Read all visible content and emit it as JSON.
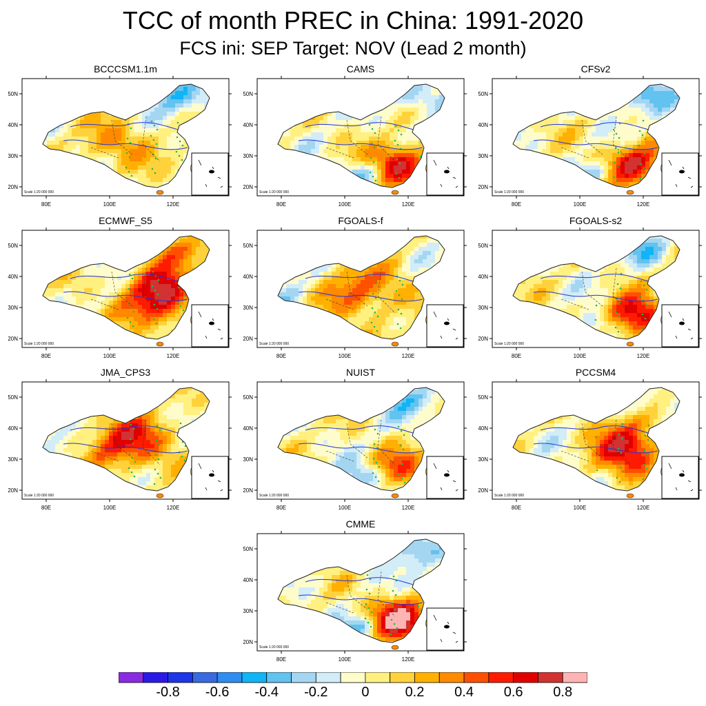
{
  "title": "TCC of month PREC in China: 1991-2020",
  "subtitle": "FCS ini: SEP    Target: NOV (Lead 2 month)",
  "map_labels": {
    "lat_ticks": [
      "50N",
      "40N",
      "30N",
      "20N"
    ],
    "lon_ticks": [
      "80E",
      "100E",
      "120E"
    ],
    "scale_text": "Scale 1:20 000 000"
  },
  "panels": [
    {
      "name": "BCCCSM1.1m",
      "pattern": "north",
      "east_strength": 0.15,
      "north_strength": 0.1
    },
    {
      "name": "CAMS",
      "pattern": "southeast",
      "east_strength": 0.75,
      "north_strength": 0.15
    },
    {
      "name": "CFSv2",
      "pattern": "southeast",
      "east_strength": 0.7,
      "north_strength": 0.1
    },
    {
      "name": "ECMWF_S5",
      "pattern": "east",
      "east_strength": 0.8,
      "north_strength": 0.4
    },
    {
      "name": "FGOALS-f",
      "pattern": "center",
      "east_strength": 0.45,
      "north_strength": 0.45
    },
    {
      "name": "FGOALS-s2",
      "pattern": "southeast",
      "east_strength": 0.75,
      "north_strength": 0.2
    },
    {
      "name": "JMA_CPS3",
      "pattern": "center",
      "east_strength": 0.6,
      "north_strength": 0.35
    },
    {
      "name": "NUIST",
      "pattern": "southeast",
      "east_strength": 0.4,
      "north_strength": 0.1
    },
    {
      "name": "PCCSM4",
      "pattern": "east",
      "east_strength": 0.7,
      "north_strength": -0.2
    },
    {
      "name": "CMME",
      "pattern": "southeast",
      "east_strength": 0.85,
      "north_strength": 0.2
    }
  ],
  "colorbar": {
    "colors": [
      "#8a2be2",
      "#2b1ae6",
      "#1e36e6",
      "#3a6ae0",
      "#2f8cf0",
      "#11b4f5",
      "#62c2f0",
      "#a4d6f2",
      "#d2ecf8",
      "#fffccc",
      "#fff080",
      "#ffd23c",
      "#ffb000",
      "#ff8a00",
      "#ff5000",
      "#ff1a00",
      "#e00000",
      "#d23232",
      "#ffb4b4"
    ],
    "labels": [
      "-0.8",
      "-0.6",
      "-0.4",
      "-0.2",
      "0",
      "0.2",
      "0.4",
      "0.6",
      "0.8"
    ]
  }
}
